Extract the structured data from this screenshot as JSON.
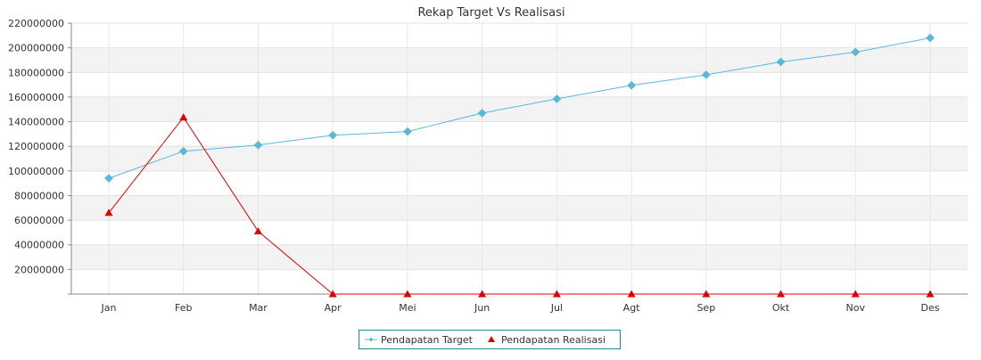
{
  "chart_data": {
    "type": "line",
    "title": "Rekap Target Vs Realisasi",
    "categories": [
      "Jan",
      "Feb",
      "Mar",
      "Apr",
      "Mei",
      "Jun",
      "Jul",
      "Agt",
      "Sep",
      "Okt",
      "Nov",
      "Des"
    ],
    "series": [
      {
        "name": "Pendapatan Target",
        "color": "#5ab8d8",
        "marker": "diamond",
        "values": [
          94000000,
          116000000,
          121000000,
          129000000,
          132000000,
          147000000,
          158500000,
          169500000,
          178000000,
          188500000,
          196500000,
          208000000
        ]
      },
      {
        "name": "Pendapatan Realisasi",
        "color": "#e00000",
        "marker": "triangle",
        "values": [
          66000000,
          143500000,
          51000000,
          0,
          0,
          0,
          0,
          0,
          0,
          0,
          0,
          0
        ]
      }
    ],
    "ylim": [
      0,
      220000000
    ],
    "yticks": [
      20000000,
      40000000,
      60000000,
      80000000,
      100000000,
      120000000,
      140000000,
      160000000,
      180000000,
      200000000,
      220000000
    ],
    "ytick_labels": [
      "20000000",
      "40000000",
      "60000000",
      "80000000",
      "100000000",
      "120000000",
      "140000000",
      "160000000",
      "180000000",
      "200000000",
      "220000000"
    ],
    "grid": true,
    "legend_position": "bottom-center"
  }
}
